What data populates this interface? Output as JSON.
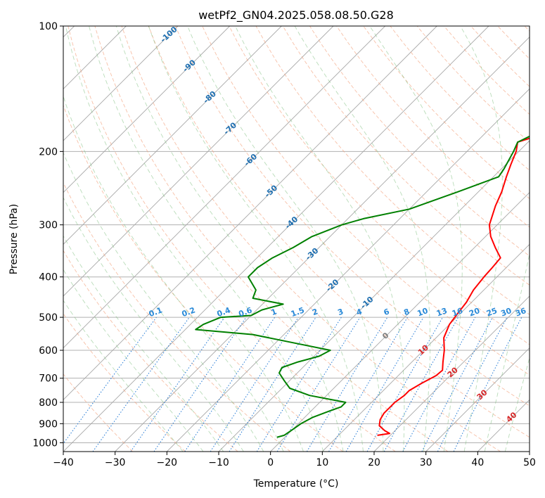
{
  "chart_data": {
    "type": "skew-t",
    "title": "wetPf2_GN04.2025.058.08.50.G28",
    "xlabel": "Temperature (°C)",
    "ylabel": "Pressure (hPa)",
    "xlim": [
      -40,
      50
    ],
    "ylim": [
      1050,
      100
    ],
    "x_ticks": [
      -40,
      -30,
      -20,
      -10,
      0,
      10,
      20,
      30,
      40,
      50
    ],
    "y_ticks": [
      100,
      200,
      300,
      400,
      500,
      600,
      700,
      800,
      900,
      1000
    ],
    "grid": true,
    "isotherm_labels": [
      -100,
      -90,
      -80,
      -70,
      -60,
      -50,
      -40,
      -30,
      -20,
      -10,
      0,
      10,
      20,
      30,
      40
    ],
    "mixing_ratio_labels": [
      "0.1",
      "0.2",
      "0.4",
      "0.6",
      "1",
      "1.5",
      "2",
      "3",
      "4",
      "6",
      "8",
      "10",
      "13",
      "16",
      "20",
      "25",
      "30",
      "36"
    ],
    "series": [
      {
        "color": "#ff0000",
        "points": [
          [
            960,
            17.5
          ],
          [
            950,
            19.5
          ],
          [
            935,
            18
          ],
          [
            910,
            16
          ],
          [
            880,
            15
          ],
          [
            850,
            14.5
          ],
          [
            820,
            14.5
          ],
          [
            800,
            14.5
          ],
          [
            770,
            15
          ],
          [
            750,
            15
          ],
          [
            720,
            16
          ],
          [
            690,
            17.3
          ],
          [
            670,
            17.5
          ],
          [
            640,
            16
          ],
          [
            600,
            14
          ],
          [
            560,
            11.5
          ],
          [
            520,
            10
          ],
          [
            490,
            9.5
          ],
          [
            460,
            9
          ],
          [
            430,
            8
          ],
          [
            400,
            7.5
          ],
          [
            380,
            7.3
          ],
          [
            360,
            7
          ],
          [
            340,
            4
          ],
          [
            320,
            1
          ],
          [
            300,
            -1.5
          ],
          [
            270,
            -4
          ],
          [
            250,
            -5.5
          ],
          [
            230,
            -7.5
          ],
          [
            215,
            -9
          ],
          [
            200,
            -10.5
          ],
          [
            190,
            -12
          ],
          [
            180,
            -8
          ],
          [
            175,
            -4
          ],
          [
            170,
            -1
          ],
          [
            165,
            2
          ],
          [
            155,
            4
          ],
          [
            140,
            5.5
          ],
          [
            125,
            7.5
          ],
          [
            112,
            10
          ],
          [
            105,
            11.5
          ],
          [
            100,
            12
          ]
        ]
      },
      {
        "color": "#008000",
        "points": [
          [
            970,
            -1.5
          ],
          [
            960,
            -0.5
          ],
          [
            930,
            0
          ],
          [
            900,
            0.5
          ],
          [
            870,
            1.5
          ],
          [
            840,
            3.5
          ],
          [
            820,
            5
          ],
          [
            800,
            5
          ],
          [
            770,
            -3.3
          ],
          [
            740,
            -8.5
          ],
          [
            710,
            -11
          ],
          [
            680,
            -13.5
          ],
          [
            660,
            -14
          ],
          [
            640,
            -12
          ],
          [
            620,
            -9
          ],
          [
            600,
            -8
          ],
          [
            580,
            -15
          ],
          [
            550,
            -26
          ],
          [
            535,
            -38
          ],
          [
            520,
            -37.5
          ],
          [
            500,
            -35.5
          ],
          [
            495,
            -30
          ],
          [
            480,
            -29
          ],
          [
            465,
            -26
          ],
          [
            450,
            -33
          ],
          [
            430,
            -34
          ],
          [
            400,
            -38
          ],
          [
            380,
            -38
          ],
          [
            360,
            -37
          ],
          [
            340,
            -35
          ],
          [
            320,
            -33.5
          ],
          [
            300,
            -30
          ],
          [
            290,
            -27
          ],
          [
            275,
            -20
          ],
          [
            250,
            -14
          ],
          [
            230,
            -9
          ],
          [
            220,
            -9.5
          ],
          [
            200,
            -11
          ],
          [
            190,
            -12
          ],
          [
            180,
            -10
          ],
          [
            170,
            -9
          ],
          [
            160,
            -9
          ],
          [
            150,
            -7
          ],
          [
            130,
            -5.5
          ],
          [
            115,
            -5
          ],
          [
            105,
            -2
          ],
          [
            100,
            2
          ]
        ]
      }
    ]
  }
}
